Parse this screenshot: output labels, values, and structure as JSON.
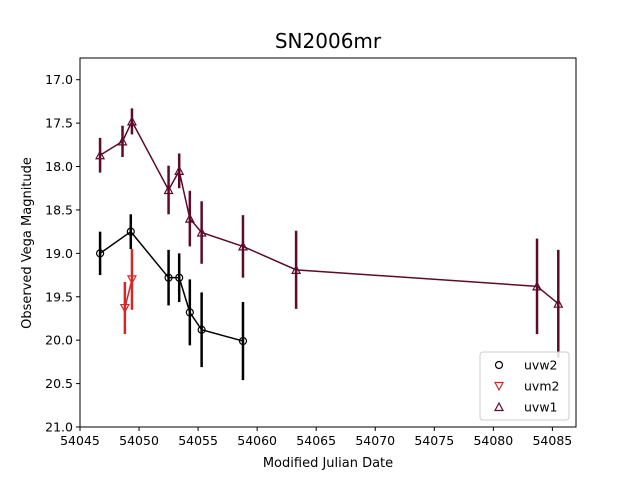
{
  "chart_data": {
    "type": "scatter",
    "title": "SN2006mr",
    "xlabel": "Modified Julian Date",
    "ylabel": "Observed Vega Magnitude",
    "xlim": [
      54045,
      54087
    ],
    "ylim": [
      21.0,
      16.75
    ],
    "y_inverted": true,
    "grid": false,
    "legend_position": "lower right",
    "x_ticks": [
      54045,
      54050,
      54055,
      54060,
      54065,
      54070,
      54075,
      54080,
      54085
    ],
    "x_tick_labels": [
      "54045",
      "54050",
      "54055",
      "54060",
      "54065",
      "54070",
      "54075",
      "54080",
      "54085"
    ],
    "y_ticks": [
      17.0,
      17.5,
      18.0,
      18.5,
      19.0,
      19.5,
      20.0,
      20.5,
      21.0
    ],
    "y_tick_labels": [
      "17.0",
      "17.5",
      "18.0",
      "18.5",
      "19.0",
      "19.5",
      "20.0",
      "20.5",
      "21.0"
    ],
    "series": [
      {
        "name": "uvw2",
        "color": "#000000",
        "marker": "circle",
        "connected": true,
        "points": [
          {
            "x": 54046.7,
            "y": 19.0,
            "err": 0.25
          },
          {
            "x": 54049.3,
            "y": 18.75,
            "err": 0.2
          },
          {
            "x": 54052.5,
            "y": 19.28,
            "err": 0.32
          },
          {
            "x": 54053.4,
            "y": 19.28,
            "err": 0.28
          },
          {
            "x": 54054.3,
            "y": 19.68,
            "err": 0.38
          },
          {
            "x": 54055.3,
            "y": 19.88,
            "err": 0.43
          },
          {
            "x": 54058.8,
            "y": 20.01,
            "err": 0.45
          }
        ]
      },
      {
        "name": "uvm2",
        "color": "#d62728",
        "marker": "triangle-down",
        "connected": true,
        "points": [
          {
            "x": 54048.8,
            "y": 19.63,
            "err": 0.3
          },
          {
            "x": 54049.4,
            "y": 19.3,
            "err": 0.35
          }
        ]
      },
      {
        "name": "uvw1",
        "color": "#5e0a2a",
        "marker": "triangle-up",
        "connected": true,
        "points": [
          {
            "x": 54046.7,
            "y": 17.87,
            "err": 0.2
          },
          {
            "x": 54048.6,
            "y": 17.71,
            "err": 0.18
          },
          {
            "x": 54049.4,
            "y": 17.48,
            "err": 0.15
          },
          {
            "x": 54052.5,
            "y": 18.27,
            "err": 0.28
          },
          {
            "x": 54053.4,
            "y": 18.05,
            "err": 0.2
          },
          {
            "x": 54054.3,
            "y": 18.6,
            "err": 0.32
          },
          {
            "x": 54055.3,
            "y": 18.76,
            "err": 0.36
          },
          {
            "x": 54058.8,
            "y": 18.92,
            "err": 0.36
          },
          {
            "x": 54063.3,
            "y": 19.19,
            "err": 0.45
          },
          {
            "x": 54083.7,
            "y": 19.38,
            "err": 0.55
          },
          {
            "x": 54085.5,
            "y": 19.58,
            "err": 0.62
          }
        ]
      }
    ]
  }
}
